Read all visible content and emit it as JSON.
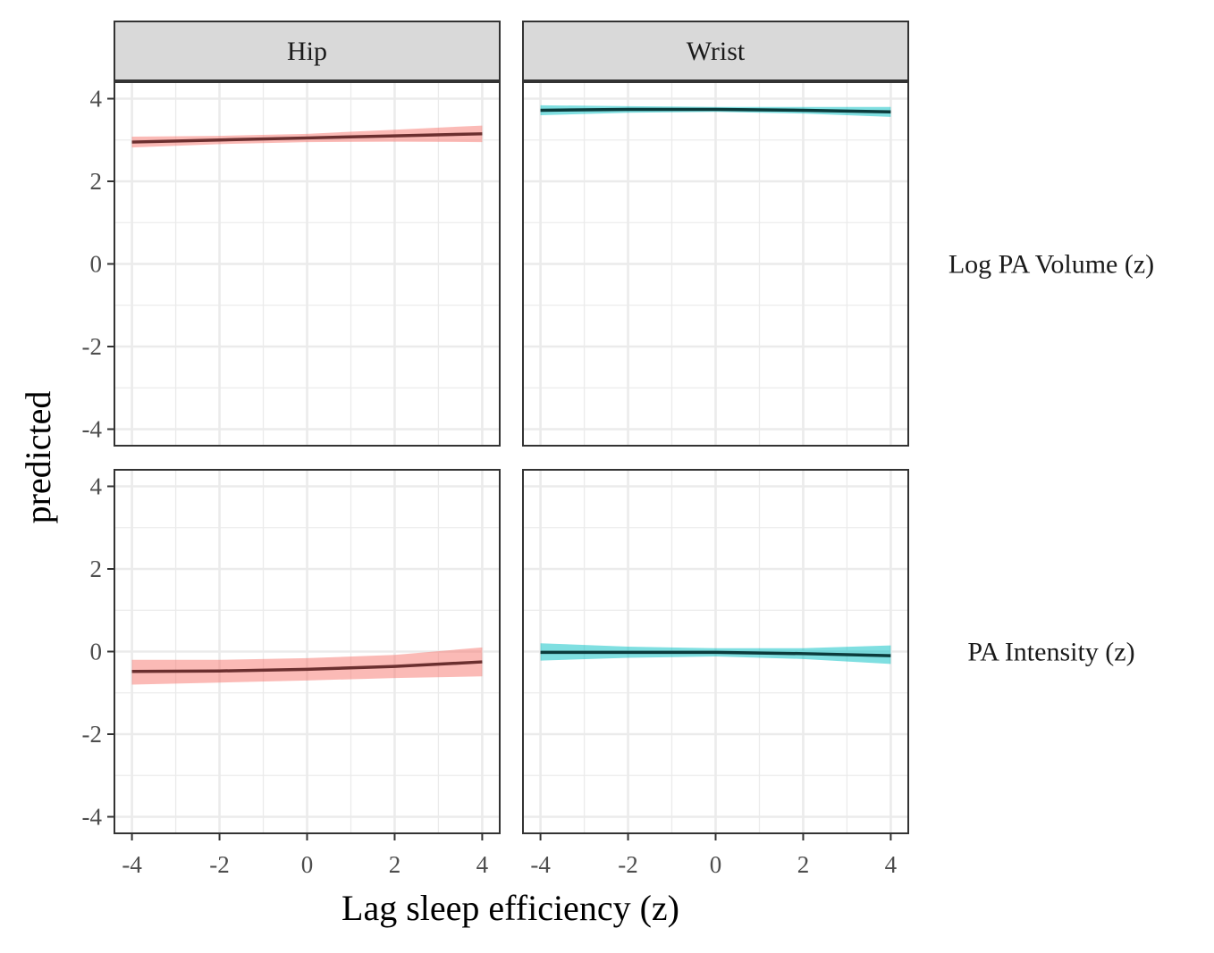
{
  "chart_data": {
    "type": "line",
    "xlabel": "Lag sleep efficiency (z)",
    "ylabel": "predicted",
    "xlim": [
      -4.4,
      4.4
    ],
    "ylim": [
      -4.4,
      4.4
    ],
    "x_ticks": [
      -4,
      -2,
      0,
      2,
      4
    ],
    "y_ticks": [
      -4,
      -2,
      0,
      2,
      4
    ],
    "x_tick_labels": [
      "-4",
      "-2",
      "0",
      "2",
      "4"
    ],
    "y_tick_labels": [
      "-4",
      "-2",
      "0",
      "2",
      "4"
    ],
    "grid": true,
    "legend": "none",
    "facet_columns": [
      "Hip",
      "Wrist"
    ],
    "facet_rows": [
      "Log PA Volume (z)",
      "PA Intensity (z)"
    ],
    "colors": {
      "hip_ribbon": "#f8766d",
      "hip_line": "#6b2f2f",
      "wrist_ribbon": "#00bfc4",
      "wrist_line": "#0b3b3c",
      "strip_fill": "#d9d9d9",
      "panel_border": "#333333",
      "grid": "#ebebeb"
    },
    "panels": [
      {
        "col": "Hip",
        "row": "Log PA Volume (z)",
        "x": [
          -4,
          -2,
          0,
          2,
          4
        ],
        "y": [
          2.95,
          3.0,
          3.05,
          3.1,
          3.15
        ],
        "lower": [
          2.82,
          2.9,
          2.95,
          2.96,
          2.95
        ],
        "upper": [
          3.08,
          3.1,
          3.15,
          3.25,
          3.35
        ]
      },
      {
        "col": "Wrist",
        "row": "Log PA Volume (z)",
        "x": [
          -4,
          -2,
          0,
          2,
          4
        ],
        "y": [
          3.72,
          3.74,
          3.74,
          3.72,
          3.68
        ],
        "lower": [
          3.6,
          3.66,
          3.68,
          3.64,
          3.56
        ],
        "upper": [
          3.84,
          3.82,
          3.8,
          3.8,
          3.8
        ]
      },
      {
        "col": "Hip",
        "row": "PA Intensity (z)",
        "x": [
          -4,
          -2,
          0,
          2,
          4
        ],
        "y": [
          -0.48,
          -0.47,
          -0.43,
          -0.36,
          -0.25
        ],
        "lower": [
          -0.8,
          -0.75,
          -0.7,
          -0.64,
          -0.6
        ],
        "upper": [
          -0.2,
          -0.2,
          -0.16,
          -0.08,
          0.1
        ]
      },
      {
        "col": "Wrist",
        "row": "PA Intensity (z)",
        "x": [
          -4,
          -2,
          0,
          2,
          4
        ],
        "y": [
          -0.02,
          -0.02,
          -0.02,
          -0.05,
          -0.1
        ],
        "lower": [
          -0.22,
          -0.15,
          -0.12,
          -0.18,
          -0.3
        ],
        "upper": [
          0.2,
          0.12,
          0.08,
          0.08,
          0.15
        ]
      }
    ]
  }
}
